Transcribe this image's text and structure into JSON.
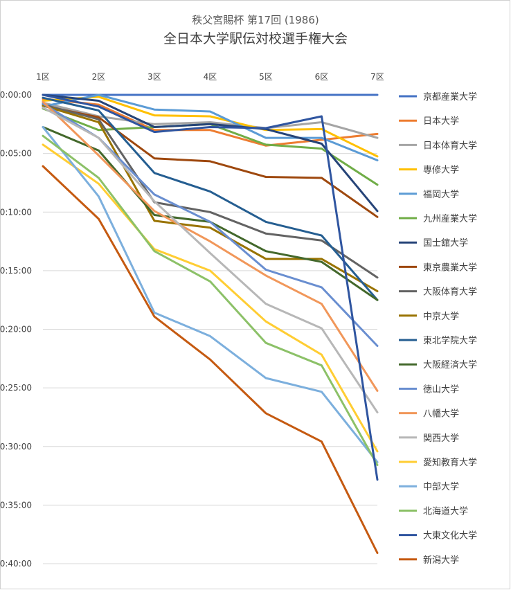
{
  "chart_data": {
    "type": "line",
    "subtitle": "秩父宮賜杯 第17回 (1986)",
    "title": "全日本大学駅伝対校選手権大会",
    "xlabel": "",
    "ylabel": "",
    "categories": [
      "1区",
      "2区",
      "3区",
      "4区",
      "5区",
      "6区",
      "7区"
    ],
    "y_ticks": [
      "0:00:00",
      "0:05:00",
      "0:10:00",
      "0:15:00",
      "0:20:00",
      "0:25:00",
      "0:30:00",
      "0:35:00",
      "0:40:00"
    ],
    "y_tick_seconds": [
      0,
      300,
      600,
      900,
      1200,
      1500,
      1800,
      2100,
      2400
    ],
    "ylim_seconds": [
      0,
      2400
    ],
    "y_unit": "seconds behind leader",
    "y_reversed": true,
    "grid": "horizontal",
    "legend_position": "right",
    "series": [
      {
        "name": "京都産業大学",
        "color": "#4472c4",
        "values": [
          0,
          0,
          0,
          0,
          0,
          0,
          0
        ]
      },
      {
        "name": "日本大学",
        "color": "#ed7d31",
        "values": [
          20,
          50,
          180,
          180,
          260,
          230,
          200
        ]
      },
      {
        "name": "日本体育大学",
        "color": "#a5a5a5",
        "values": [
          40,
          110,
          150,
          140,
          170,
          140,
          220
        ]
      },
      {
        "name": "専修大学",
        "color": "#ffc000",
        "values": [
          30,
          10,
          105,
          110,
          180,
          175,
          315
        ]
      },
      {
        "name": "福岡大学",
        "color": "#5b9bd5",
        "values": [
          60,
          0,
          75,
          85,
          220,
          220,
          335
        ]
      },
      {
        "name": "九州産業大学",
        "color": "#70ad47",
        "values": [
          70,
          180,
          165,
          150,
          255,
          275,
          460
        ]
      },
      {
        "name": "国士舘大学",
        "color": "#264478",
        "values": [
          0,
          30,
          165,
          150,
          175,
          250,
          595
        ]
      },
      {
        "name": "東京農業大学",
        "color": "#9e480e",
        "values": [
          55,
          115,
          325,
          340,
          420,
          425,
          625
        ]
      },
      {
        "name": "大阪体育大学",
        "color": "#636363",
        "values": [
          50,
          125,
          550,
          600,
          710,
          745,
          935
        ]
      },
      {
        "name": "中京大学",
        "color": "#997300",
        "values": [
          55,
          140,
          645,
          680,
          840,
          840,
          1005
        ]
      },
      {
        "name": "東北学院大学",
        "color": "#255e91",
        "values": [
          15,
          80,
          400,
          495,
          650,
          720,
          1050
        ]
      },
      {
        "name": "大阪経済大学",
        "color": "#43682b",
        "values": [
          165,
          285,
          615,
          650,
          800,
          855,
          1050
        ]
      },
      {
        "name": "徳山大学",
        "color": "#698ed0",
        "values": [
          45,
          220,
          510,
          650,
          895,
          985,
          1285
        ]
      },
      {
        "name": "八幡大学",
        "color": "#f1975a",
        "values": [
          35,
          310,
          595,
          750,
          925,
          1070,
          1515
        ]
      },
      {
        "name": "関西大学",
        "color": "#b7b7b7",
        "values": [
          65,
          220,
          545,
          810,
          1070,
          1195,
          1625
        ]
      },
      {
        "name": "愛知教育大学",
        "color": "#ffcd33",
        "values": [
          255,
          455,
          790,
          900,
          1160,
          1330,
          1825
        ]
      },
      {
        "name": "中部大学",
        "color": "#7cafdd",
        "values": [
          165,
          520,
          1115,
          1235,
          1450,
          1520,
          1880
        ]
      },
      {
        "name": "北海道大学",
        "color": "#8cc168",
        "values": [
          210,
          425,
          800,
          955,
          1270,
          1385,
          1895
        ]
      },
      {
        "name": "大東文化大学",
        "color": "#2f55a0",
        "values": [
          0,
          60,
          190,
          165,
          170,
          110,
          1970
        ]
      },
      {
        "name": "新潟大学",
        "color": "#c55a11",
        "values": [
          365,
          635,
          1135,
          1355,
          1630,
          1775,
          2345
        ]
      }
    ]
  }
}
